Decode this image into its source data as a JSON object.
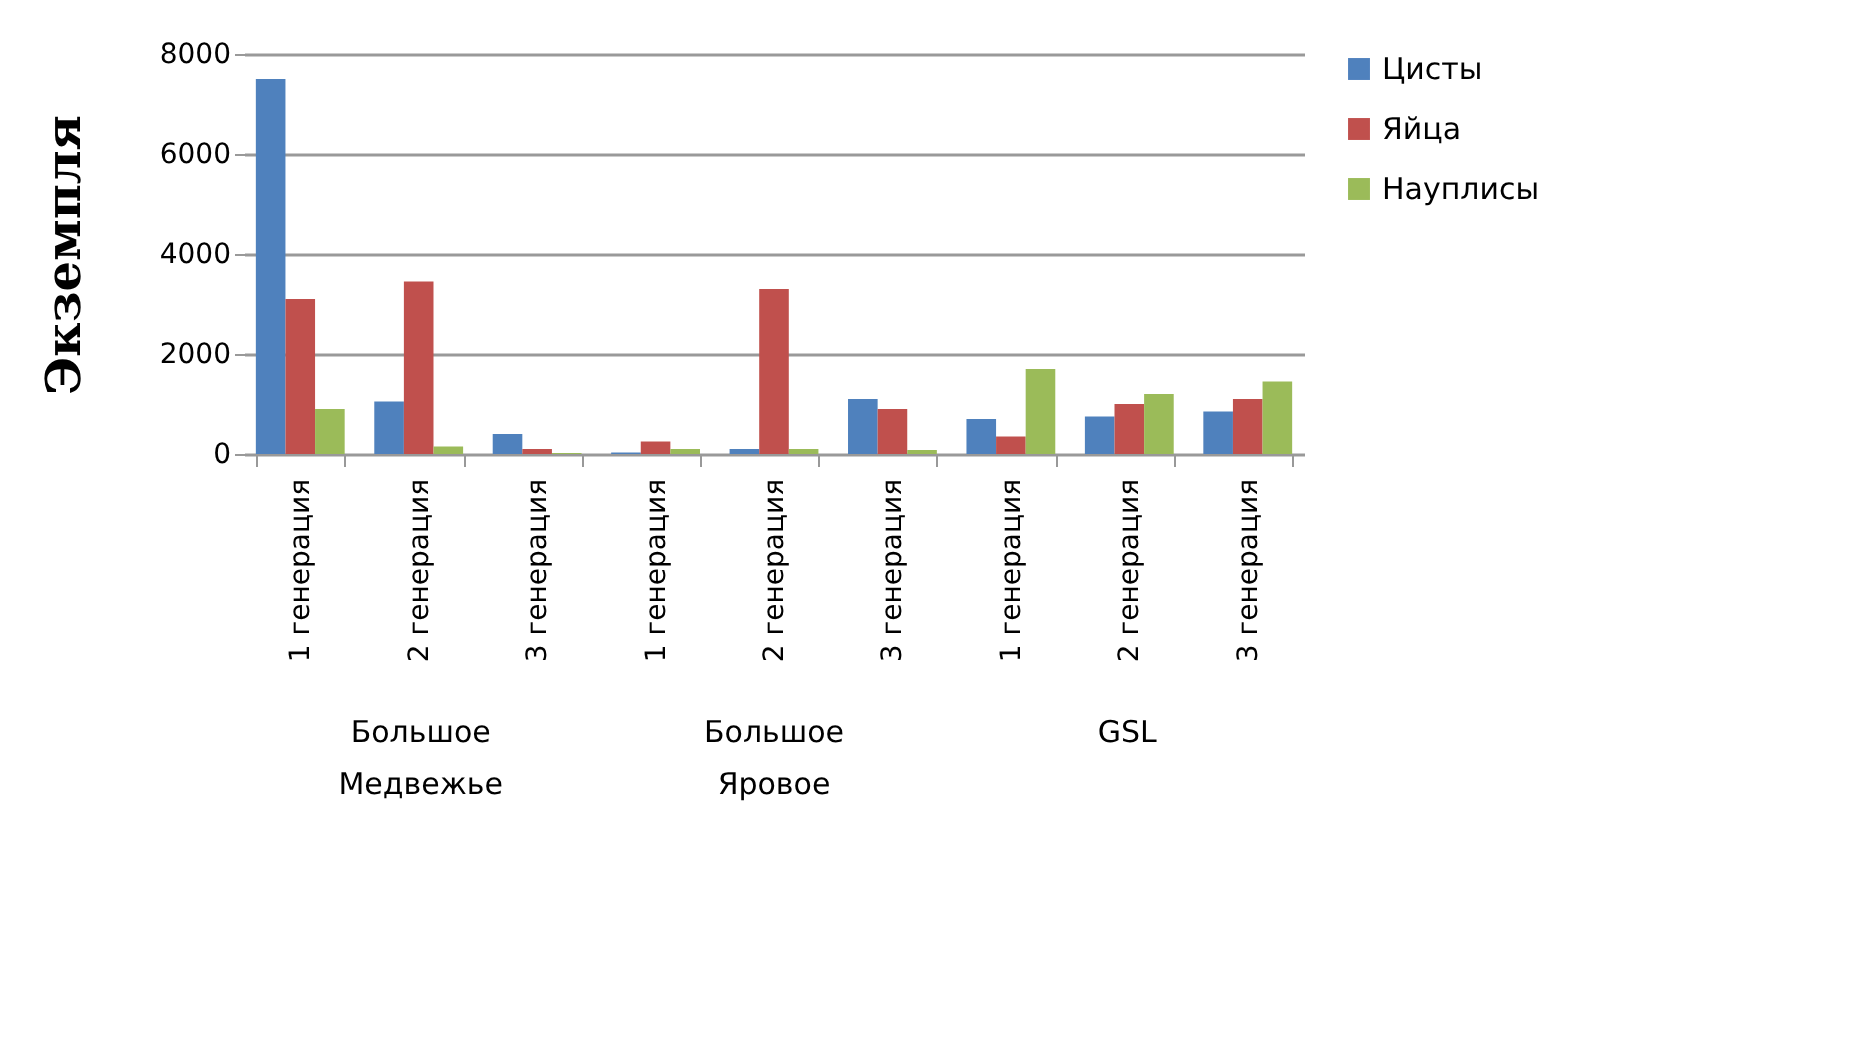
{
  "chart_data": {
    "type": "bar",
    "ylabel": "Экземпля",
    "categories": [
      "1 генерация",
      "2 генерация",
      "3 генерация",
      "1 генерация",
      "2 генерация",
      "3 генерация",
      "1 генерация",
      "2 генерация",
      "3 генерация"
    ],
    "annotations": [
      "Большое Медвежье",
      "Большое Яровое",
      "GSL"
    ],
    "series": [
      {
        "name": "Цисты",
        "color": "#4f81bd",
        "values": [
          7500,
          1050,
          400,
          30,
          100,
          1100,
          700,
          750,
          850
        ]
      },
      {
        "name": "Яйца",
        "color": "#c0504d",
        "values": [
          3100,
          3450,
          100,
          250,
          3300,
          900,
          350,
          1000,
          1100
        ]
      },
      {
        "name": "Науплисы",
        "color": "#9bbb59",
        "values": [
          900,
          150,
          20,
          100,
          100,
          80,
          1700,
          1200,
          1450
        ]
      }
    ],
    "ylim": [
      0,
      8000
    ],
    "yticks": [
      0,
      2000,
      4000,
      6000,
      8000
    ],
    "grid": "y",
    "legend": "right"
  }
}
